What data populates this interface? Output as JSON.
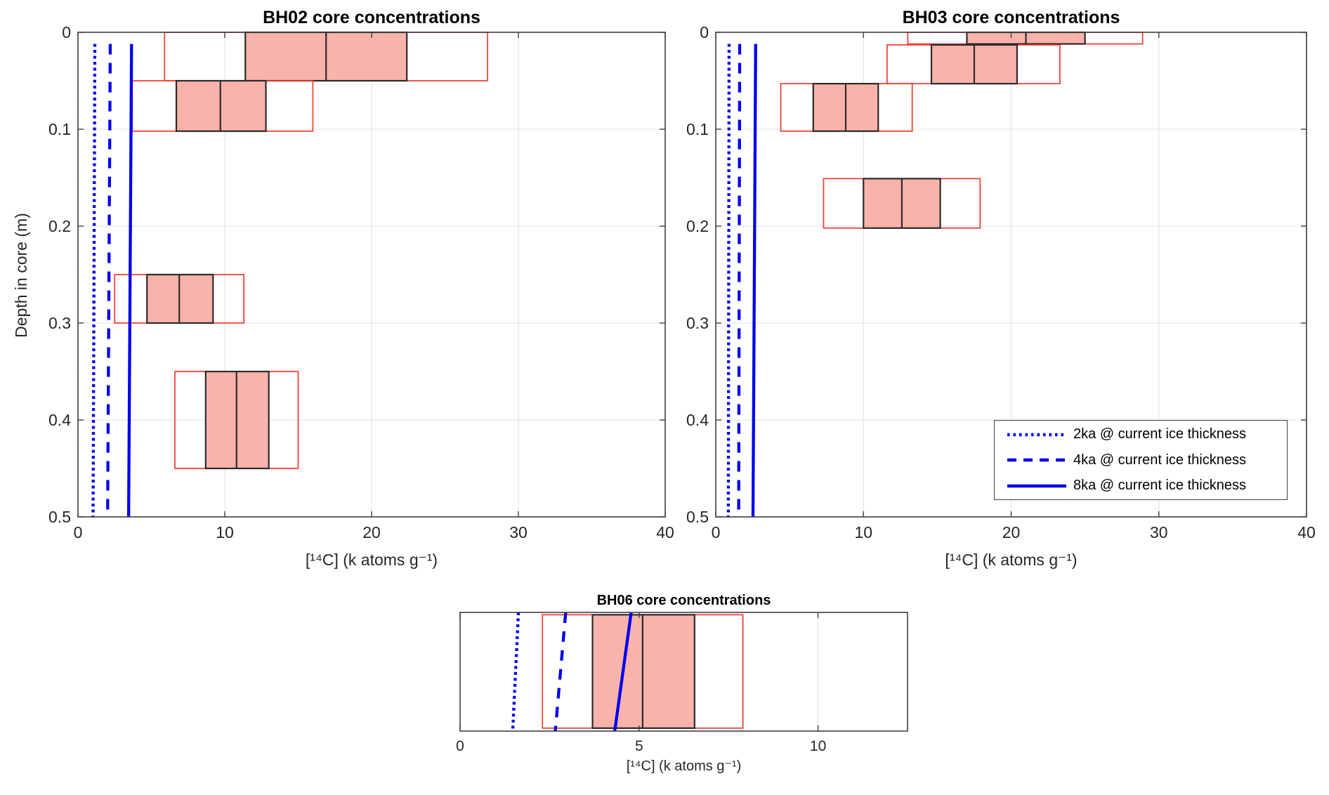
{
  "figure": {
    "ylabel": "Depth in core (m)",
    "legend": {
      "items": [
        {
          "style": "dotted",
          "label": "2ka @ current ice thickness"
        },
        {
          "style": "dashed",
          "label": "4ka @ current ice thickness"
        },
        {
          "style": "solid",
          "label": "8ka @ current ice thickness"
        }
      ]
    },
    "colors": {
      "sample_fill": "#FAB3AB",
      "sample_inner_edge": "#2B2B2B",
      "sample_outer_edge": "#F03B2B",
      "model_line": "#0000EE",
      "axis": "#3F3F3F",
      "grid": "#E6E6E6",
      "tick_text": "#262626"
    }
  },
  "chart_data": [
    {
      "type": "box-depth-profile",
      "id": "bh02",
      "title": "BH02 core concentrations",
      "xlabel": "[¹⁴C] (k atoms g⁻¹)",
      "ylabel": "Depth in core (m)",
      "xlim": [
        0,
        40
      ],
      "ylim": [
        0,
        0.5
      ],
      "x_ticks": [
        0,
        10,
        20,
        30,
        40
      ],
      "y_ticks": [
        0,
        0.1,
        0.2,
        0.3,
        0.4,
        0.5
      ],
      "grid": true,
      "show_y_tick_labels": true,
      "boxes": [
        {
          "depth_top": 0,
          "depth_bottom": 0.05,
          "outer_min": 5.9,
          "outer_max": 27.9,
          "inner_min": 11.4,
          "inner_max": 22.4,
          "median": 16.9
        },
        {
          "depth_top": 0.05,
          "depth_bottom": 0.102,
          "outer_min": 3.7,
          "outer_max": 16.0,
          "inner_min": 6.7,
          "inner_max": 12.8,
          "median": 9.7
        },
        {
          "depth_top": 0.25,
          "depth_bottom": 0.3,
          "outer_min": 2.5,
          "outer_max": 11.3,
          "inner_min": 4.7,
          "inner_max": 9.2,
          "median": 6.9
        },
        {
          "depth_top": 0.35,
          "depth_bottom": 0.45,
          "outer_min": 6.6,
          "outer_max": 15.0,
          "inner_min": 8.7,
          "inner_max": 13.0,
          "median": 10.8
        }
      ],
      "model_lines": [
        {
          "age": "2ka",
          "style": "dotted",
          "x_top": 1.15,
          "x_bottom": 1.03
        },
        {
          "age": "4ka",
          "style": "dashed",
          "x_top": 2.2,
          "x_bottom": 2.02
        },
        {
          "age": "8ka",
          "style": "solid",
          "x_top": 3.65,
          "x_bottom": 3.45
        }
      ],
      "model_depth_span": [
        0.012,
        0.5
      ]
    },
    {
      "type": "box-depth-profile",
      "id": "bh03",
      "title": "BH03 core concentrations",
      "xlabel": "[¹⁴C] (k atoms g⁻¹)",
      "ylabel": "Depth in core (m)",
      "xlim": [
        0,
        40
      ],
      "ylim": [
        0,
        0.5
      ],
      "x_ticks": [
        0,
        10,
        20,
        30,
        40
      ],
      "y_ticks": [
        0,
        0.1,
        0.2,
        0.3,
        0.4,
        0.5
      ],
      "grid": true,
      "show_y_tick_labels": true,
      "boxes": [
        {
          "depth_top": 0,
          "depth_bottom": 0.012,
          "outer_min": 13.0,
          "outer_max": 28.9,
          "inner_min": 17.0,
          "inner_max": 25.0,
          "median": 21.0
        },
        {
          "depth_top": 0.013,
          "depth_bottom": 0.053,
          "outer_min": 11.6,
          "outer_max": 23.3,
          "inner_min": 14.6,
          "inner_max": 20.4,
          "median": 17.5
        },
        {
          "depth_top": 0.053,
          "depth_bottom": 0.102,
          "outer_min": 4.4,
          "outer_max": 13.3,
          "inner_min": 6.6,
          "inner_max": 11.0,
          "median": 8.8
        },
        {
          "depth_top": 0.151,
          "depth_bottom": 0.202,
          "outer_min": 7.3,
          "outer_max": 17.9,
          "inner_min": 10.0,
          "inner_max": 15.2,
          "median": 12.6
        }
      ],
      "model_lines": [
        {
          "age": "2ka",
          "style": "dotted",
          "x_top": 0.9,
          "x_bottom": 0.85
        },
        {
          "age": "4ka",
          "style": "dashed",
          "x_top": 1.62,
          "x_bottom": 1.55
        },
        {
          "age": "8ka",
          "style": "solid",
          "x_top": 2.7,
          "x_bottom": 2.52
        }
      ],
      "model_depth_span": [
        0.012,
        0.5
      ]
    },
    {
      "type": "box-depth-profile",
      "id": "bh06",
      "title": "BH06 core concentrations",
      "xlabel": "[¹⁴C] (k atoms g⁻¹)",
      "xlim": [
        0,
        12.5
      ],
      "ylim": [
        0,
        1
      ],
      "x_ticks": [
        0,
        5,
        10
      ],
      "y_ticks": [],
      "grid": true,
      "show_y_tick_labels": false,
      "boxes": [
        {
          "depth_top": 0.02,
          "depth_bottom": 0.975,
          "outer_min": 2.3,
          "outer_max": 7.9,
          "inner_min": 3.7,
          "inner_max": 6.55,
          "median": 5.1
        }
      ],
      "model_lines": [
        {
          "age": "2ka",
          "style": "dotted",
          "x_top": 1.63,
          "x_bottom": 1.47
        },
        {
          "age": "4ka",
          "style": "dashed",
          "x_top": 2.95,
          "x_bottom": 2.66
        },
        {
          "age": "8ka",
          "style": "solid",
          "x_top": 4.78,
          "x_bottom": 4.32
        }
      ],
      "model_depth_span": [
        0,
        1
      ]
    }
  ]
}
